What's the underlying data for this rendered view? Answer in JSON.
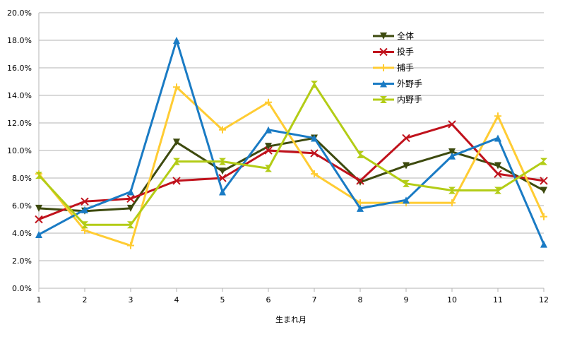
{
  "chart_data": {
    "type": "line",
    "title": "",
    "xlabel": "生まれ月",
    "ylabel": "",
    "x": [
      1,
      2,
      3,
      4,
      5,
      6,
      7,
      8,
      9,
      10,
      11,
      12
    ],
    "x_tick_labels": [
      "1",
      "2",
      "3",
      "4",
      "5",
      "6",
      "7",
      "8",
      "9",
      "10",
      "11",
      "12"
    ],
    "ylim": [
      0,
      20
    ],
    "y_ticks": [
      0,
      2,
      4,
      6,
      8,
      10,
      12,
      14,
      16,
      18,
      20
    ],
    "y_tick_labels": [
      "0.0%",
      "2.0%",
      "4.0%",
      "6.0%",
      "8.0%",
      "10.0%",
      "12.0%",
      "14.0%",
      "16.0%",
      "18.0%",
      "20.0%"
    ],
    "y_unit": "%",
    "grid": true,
    "legend_position": "top-right",
    "series": [
      {
        "name": "全体",
        "color": "#3d4a0e",
        "marker": "triangle-down",
        "values": [
          5.8,
          5.6,
          5.8,
          10.6,
          8.5,
          10.3,
          10.9,
          7.7,
          8.9,
          9.9,
          8.9,
          7.1
        ]
      },
      {
        "name": "投手",
        "color": "#c0121c",
        "marker": "x",
        "values": [
          5.0,
          6.3,
          6.5,
          7.8,
          8.0,
          10.0,
          9.8,
          7.8,
          10.9,
          11.9,
          8.3,
          7.8
        ]
      },
      {
        "name": "捕手",
        "color": "#ffcc33",
        "marker": "plus",
        "values": [
          8.3,
          4.2,
          3.1,
          14.6,
          11.5,
          13.5,
          8.3,
          6.2,
          6.2,
          6.2,
          12.5,
          5.2
        ]
      },
      {
        "name": "外野手",
        "color": "#1a7bc4",
        "marker": "triangle-up",
        "values": [
          3.9,
          5.7,
          7.0,
          18.0,
          7.0,
          11.5,
          10.9,
          5.8,
          6.4,
          9.6,
          10.9,
          3.2
        ]
      },
      {
        "name": "内野手",
        "color": "#b3cc16",
        "marker": "hourglass",
        "values": [
          8.2,
          4.6,
          4.6,
          9.2,
          9.2,
          8.7,
          14.8,
          9.7,
          7.6,
          7.1,
          7.1,
          9.2
        ]
      }
    ]
  }
}
